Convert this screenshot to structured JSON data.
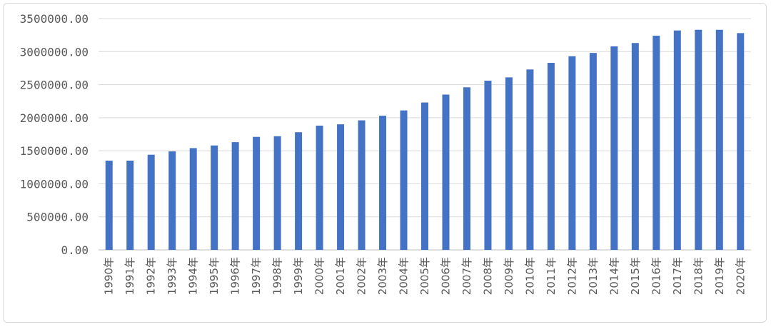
{
  "chart_data": {
    "type": "bar",
    "title": "",
    "xlabel": "",
    "ylabel": "",
    "ylim": [
      0,
      3500000
    ],
    "y_ticks": [
      "0.00",
      "500000.00",
      "1000000.00",
      "1500000.00",
      "2000000.00",
      "2500000.00",
      "3000000.00",
      "3500000.00"
    ],
    "categories": [
      "1990年",
      "1991年",
      "1992年",
      "1993年",
      "1994年",
      "1995年",
      "1996年",
      "1997年",
      "1998年",
      "1999年",
      "2000年",
      "2001年",
      "2002年",
      "2003年",
      "2004年",
      "2005年",
      "2006年",
      "2007年",
      "2008年",
      "2009年",
      "2010年",
      "2011年",
      "2012年",
      "2013年",
      "2014年",
      "2015年",
      "2016年",
      "2017年",
      "2018年",
      "2019年",
      "2020年"
    ],
    "values": [
      1350000,
      1350000,
      1440000,
      1490000,
      1540000,
      1580000,
      1630000,
      1710000,
      1720000,
      1780000,
      1880000,
      1900000,
      1960000,
      2030000,
      2110000,
      2230000,
      2350000,
      2460000,
      2560000,
      2610000,
      2730000,
      2830000,
      2930000,
      2980000,
      3080000,
      3130000,
      3240000,
      3320000,
      3330000,
      3330000,
      3280000
    ],
    "grid": true,
    "legend": "none",
    "bar_color": "#4472C4"
  }
}
